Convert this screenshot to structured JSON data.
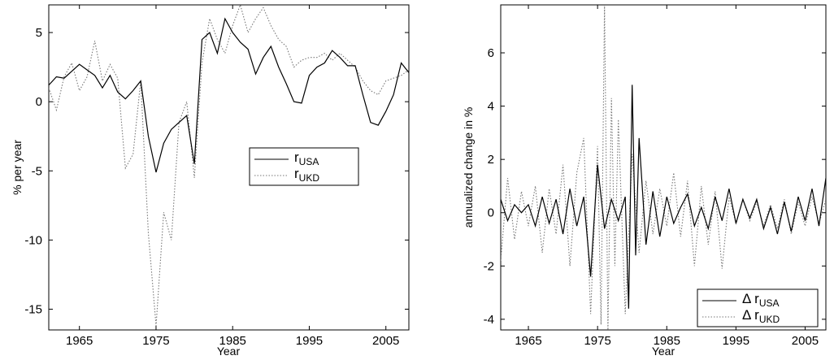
{
  "chart_data": [
    {
      "type": "line",
      "title": "",
      "xlabel": "Year",
      "ylabel": "% per year",
      "xlim": [
        1961,
        2008
      ],
      "ylim": [
        -16.5,
        7
      ],
      "xticks": [
        1965,
        1975,
        1985,
        1995,
        2005
      ],
      "xtick_labels": [
        "1965",
        "1975",
        "1985",
        "1995",
        "2005"
      ],
      "yticks": [
        -15,
        -10,
        -5,
        0,
        5
      ],
      "ytick_labels": [
        "-15",
        "-10",
        "-5",
        "0",
        "5"
      ],
      "grid": false,
      "legend_position": "center-right",
      "series": [
        {
          "name": "r",
          "subscript": "USA",
          "style": "solid",
          "color": "#000000",
          "x": [
            1961,
            1962,
            1963,
            1964,
            1965,
            1966,
            1967,
            1968,
            1969,
            1970,
            1971,
            1972,
            1973,
            1974,
            1975,
            1976,
            1977,
            1978,
            1979,
            1980,
            1981,
            1982,
            1983,
            1984,
            1985,
            1986,
            1987,
            1988,
            1989,
            1990,
            1991,
            1992,
            1993,
            1994,
            1995,
            1996,
            1997,
            1998,
            1999,
            2000,
            2001,
            2002,
            2003,
            2004,
            2005,
            2006,
            2007,
            2008
          ],
          "values": [
            1.2,
            1.8,
            1.7,
            2.2,
            2.7,
            2.3,
            1.9,
            1.0,
            1.9,
            0.7,
            0.2,
            0.8,
            1.5,
            -2.5,
            -5.1,
            -3.0,
            -2.0,
            -1.5,
            -1.0,
            -4.5,
            4.5,
            5.0,
            3.5,
            6.0,
            5.0,
            4.3,
            3.8,
            2.0,
            3.2,
            4.0,
            2.5,
            1.3,
            0.0,
            -0.1,
            1.9,
            2.5,
            2.8,
            3.7,
            3.2,
            2.6,
            2.6,
            0.5,
            -1.5,
            -1.7,
            -0.7,
            0.5,
            2.8,
            2.1
          ]
        },
        {
          "name": "r",
          "subscript": "UKD",
          "style": "dotted",
          "color": "#777777",
          "x": [
            1961,
            1962,
            1963,
            1964,
            1965,
            1966,
            1967,
            1968,
            1969,
            1970,
            1971,
            1972,
            1973,
            1974,
            1975,
            1976,
            1977,
            1978,
            1979,
            1980,
            1981,
            1982,
            1983,
            1984,
            1985,
            1986,
            1987,
            1988,
            1989,
            1990,
            1991,
            1992,
            1993,
            1994,
            1995,
            1996,
            1997,
            1998,
            1999,
            2000,
            2001,
            2002,
            2003,
            2004,
            2005,
            2006,
            2007,
            2008
          ],
          "values": [
            1.0,
            -0.6,
            1.8,
            2.8,
            0.8,
            1.8,
            4.4,
            1.5,
            2.7,
            1.7,
            -4.8,
            -3.8,
            1.5,
            -9.5,
            -16.2,
            -8.0,
            -10.0,
            -1.5,
            0.0,
            -5.5,
            2.8,
            6.0,
            4.5,
            3.5,
            5.5,
            7.0,
            5.0,
            6.0,
            6.8,
            5.5,
            4.5,
            4.0,
            2.5,
            3.0,
            3.2,
            3.2,
            3.5,
            3.0,
            3.5,
            3.0,
            2.5,
            1.5,
            0.8,
            0.5,
            1.5,
            1.7,
            1.9,
            2.3
          ]
        }
      ]
    },
    {
      "type": "line",
      "title": "",
      "xlabel": "Year",
      "ylabel": "annualized change in %",
      "xlim": [
        1961,
        2008
      ],
      "ylim": [
        -4.4,
        7.8
      ],
      "xticks": [
        1965,
        1975,
        1985,
        1995,
        2005
      ],
      "xtick_labels": [
        "1965",
        "1975",
        "1985",
        "1995",
        "2005"
      ],
      "yticks": [
        -4,
        -2,
        0,
        2,
        4,
        6
      ],
      "ytick_labels": [
        "-4",
        "-2",
        "0",
        "2",
        "4",
        "6"
      ],
      "grid": false,
      "legend_position": "bottom-right",
      "series": [
        {
          "name": "Δ r",
          "subscript": "USA",
          "style": "solid",
          "color": "#000000",
          "x": [
            1961,
            1962,
            1963,
            1964,
            1965,
            1966,
            1967,
            1968,
            1969,
            1970,
            1971,
            1972,
            1973,
            1974,
            1975,
            1976,
            1977,
            1978,
            1979,
            1979.5,
            1980,
            1980.5,
            1981,
            1982,
            1983,
            1984,
            1985,
            1986,
            1987,
            1988,
            1989,
            1990,
            1991,
            1992,
            1993,
            1994,
            1995,
            1996,
            1997,
            1998,
            1999,
            2000,
            2001,
            2002,
            2003,
            2004,
            2005,
            2006,
            2007,
            2008
          ],
          "values": [
            0.5,
            -0.3,
            0.3,
            0.0,
            0.3,
            -0.5,
            0.6,
            -0.4,
            0.5,
            -0.8,
            0.9,
            -0.5,
            0.6,
            -2.4,
            1.8,
            -0.6,
            0.5,
            -0.3,
            0.6,
            -3.6,
            4.8,
            -1.6,
            2.8,
            -1.2,
            0.8,
            -0.9,
            0.6,
            -0.4,
            0.2,
            0.7,
            -0.5,
            0.2,
            -0.6,
            0.6,
            -0.3,
            0.9,
            -0.4,
            0.5,
            -0.2,
            0.5,
            -0.6,
            0.2,
            -0.8,
            0.4,
            -0.7,
            0.6,
            -0.3,
            0.9,
            -0.5,
            1.3
          ]
        },
        {
          "name": "Δ r",
          "subscript": "UKD",
          "style": "dotted",
          "color": "#777777",
          "x": [
            1961,
            1962,
            1963,
            1964,
            1965,
            1966,
            1967,
            1968,
            1969,
            1970,
            1971,
            1972,
            1973,
            1974,
            1975,
            1975.5,
            1976,
            1976.5,
            1977,
            1977.5,
            1978,
            1979,
            1980,
            1981,
            1982,
            1983,
            1984,
            1985,
            1986,
            1987,
            1988,
            1989,
            1990,
            1991,
            1992,
            1993,
            1994,
            1995,
            1996,
            1997,
            1998,
            1999,
            2000,
            2001,
            2002,
            2003,
            2004,
            2005,
            2006,
            2007,
            2008
          ],
          "values": [
            -1.8,
            1.3,
            -1.0,
            0.8,
            -0.5,
            1.0,
            -1.5,
            0.9,
            -0.8,
            1.8,
            -2.0,
            1.5,
            2.8,
            -3.8,
            2.5,
            -4.2,
            7.8,
            -4.4,
            4.3,
            -2.0,
            3.5,
            -3.8,
            2.2,
            -1.5,
            1.2,
            -0.8,
            0.9,
            -0.5,
            1.5,
            -0.9,
            1.2,
            -2.0,
            1.0,
            -1.2,
            0.8,
            -2.1,
            0.6,
            -0.4,
            0.5,
            -0.3,
            0.4,
            -0.5,
            0.3,
            -0.6,
            0.5,
            -0.8,
            0.4,
            -0.5,
            0.6,
            -0.4,
            0.5
          ]
        }
      ]
    }
  ]
}
